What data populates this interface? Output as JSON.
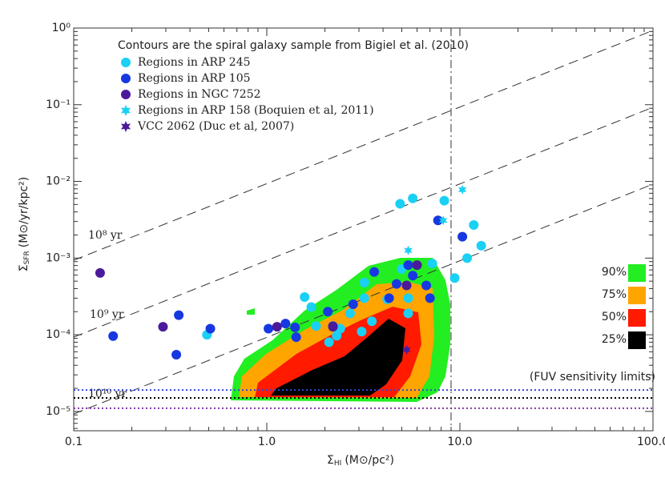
{
  "chart_data": {
    "type": "scatter",
    "title": "Contours are the spiral galaxy sample from Bigiel et al. (2010)",
    "x_label": {
      "symbol": "Σ",
      "sub": "HI",
      "unit": "(M⊙/pc²)"
    },
    "y_label": {
      "symbol": "Σ",
      "sub": "SFR",
      "unit": "(M⊙/yr/kpc²)"
    },
    "xscale": "log",
    "yscale": "log",
    "xlim": [
      0.1,
      100
    ],
    "ylim": [
      5.6e-06,
      1
    ],
    "xticks": [
      0.1,
      {
        "value": 1,
        "label": "1.0"
      },
      {
        "value": 10,
        "label": "10.0"
      },
      {
        "value": 100,
        "label": "100.0"
      }
    ],
    "yticks": [
      {
        "value": 1e-05,
        "label": "10⁻⁵"
      },
      {
        "value": 0.0001,
        "label": "10⁻⁴"
      },
      {
        "value": 0.001,
        "label": "10⁻³"
      },
      {
        "value": 0.01,
        "label": "10⁻²"
      },
      {
        "value": 0.1,
        "label": "10⁻¹"
      },
      {
        "value": 1,
        "label": "10⁰"
      }
    ],
    "series": [
      {
        "name": "Regions in ARP 245",
        "color": "#1ad0f5",
        "marker": "circle",
        "x": [
          4.9,
          5.7,
          8.3,
          11.8,
          10.9,
          12.9,
          9.4,
          7.2,
          1.57,
          3.2,
          5.4,
          5.4,
          2.7,
          3.5,
          3.1,
          2.4,
          2.3,
          2.1,
          1.8,
          0.49,
          3.2,
          4.2,
          5.0,
          1.7
        ],
        "values": [
          0.0051,
          0.006,
          0.0056,
          0.0027,
          0.001,
          0.00145,
          0.00055,
          0.00085,
          0.00031,
          0.0003,
          0.0003,
          0.00019,
          0.00019,
          0.00015,
          0.00011,
          0.00012,
          9.7e-05,
          8e-05,
          0.00013,
          0.0001,
          0.00048,
          0.00029,
          0.00072,
          0.00023
        ]
      },
      {
        "name": "Regions in ARP 105",
        "color": "#1638e0",
        "marker": "circle",
        "x": [
          7.7,
          10.3,
          5.7,
          5.4,
          4.7,
          7.0,
          6.7,
          3.6,
          4.3,
          2.2,
          1.4,
          1.25,
          1.42,
          1.02,
          2.07,
          2.8,
          0.51,
          0.35,
          0.16,
          0.34
        ],
        "values": [
          0.0031,
          0.0019,
          0.00059,
          0.00081,
          0.00046,
          0.0003,
          0.00044,
          0.00066,
          0.0003,
          0.00013,
          0.000125,
          0.00014,
          9.3e-05,
          0.00012,
          0.0002,
          0.00025,
          0.00012,
          0.00018,
          9.6e-05,
          5.5e-05
        ]
      },
      {
        "name": "Regions in NGC 7252",
        "color": "#4b1a9a",
        "marker": "circle",
        "x": [
          6.0,
          5.3,
          0.137,
          0.29,
          1.13,
          2.2
        ],
        "values": [
          0.00081,
          0.00044,
          0.00064,
          0.000127,
          0.000127,
          0.000127
        ]
      },
      {
        "name": "Regions in ARP 158 (Boquien et al, 2011)",
        "color": "#1ad0f5",
        "marker": "star",
        "x": [
          10.3,
          8.2,
          5.4
        ],
        "values": [
          0.0078,
          0.0031,
          0.00126
        ]
      },
      {
        "name": "VCC 2062 (Duc et al, 2007)",
        "color": "#4b1a9a",
        "marker": "star",
        "x": [
          5.3
        ],
        "values": [
          6.4e-05
        ]
      }
    ],
    "contour_legend": [
      {
        "label": "90%",
        "color": "#22ee22"
      },
      {
        "label": "75%",
        "color": "#ffa500"
      },
      {
        "label": "50%",
        "color": "#ff1a00"
      },
      {
        "label": "25%",
        "color": "#000000"
      }
    ],
    "depletion_labels": [
      "10⁸ yr",
      "10⁹ yr",
      "10¹⁰ yr"
    ],
    "sensitivity_label": "(FUV sensitivity limits)",
    "sensitivity_lines": [
      {
        "value": 1.9e-05,
        "color": "#3344dd"
      },
      {
        "value": 1.5e-05,
        "color": "#000000"
      },
      {
        "value": 1.1e-05,
        "color": "#8833aa"
      }
    ],
    "vline": 9
  }
}
